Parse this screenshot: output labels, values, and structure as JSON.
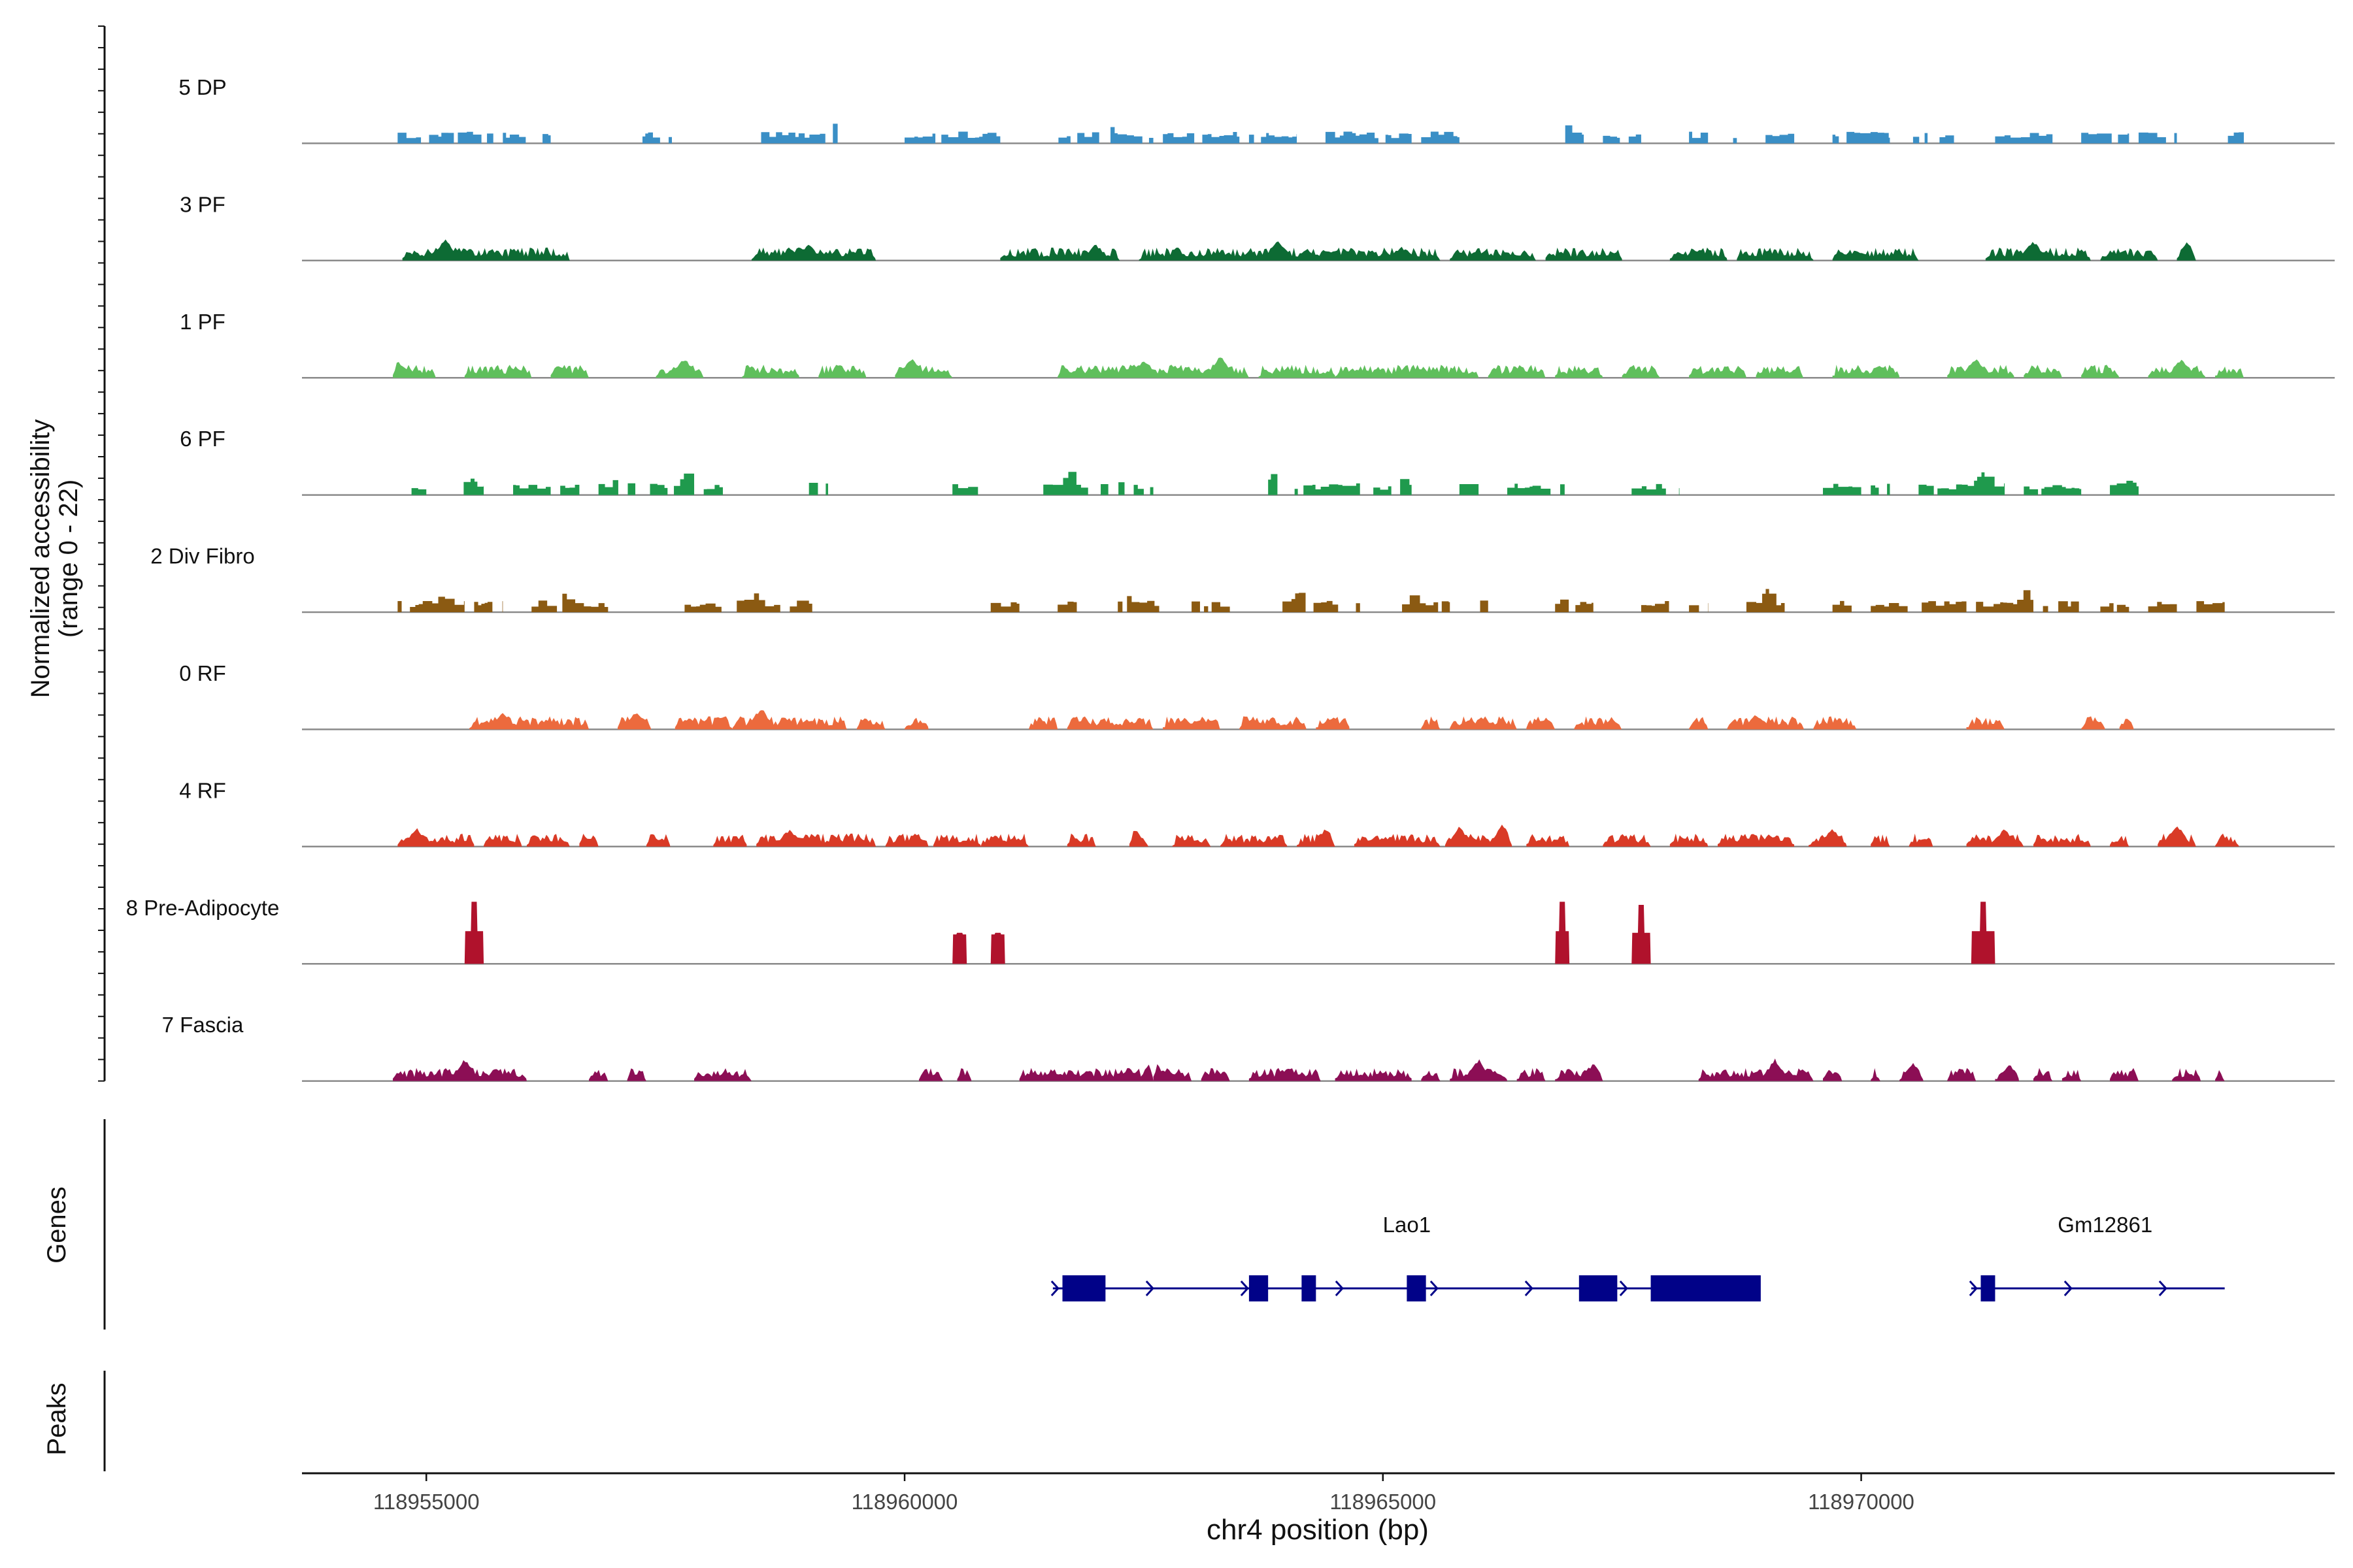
{
  "chart_data": {
    "type": "area",
    "title": "",
    "xlabel": "chr4 position (bp)",
    "ylabel_line1": "Normalized accessibility",
    "ylabel_line2": "(range 0 - 22)",
    "y_range": [
      0,
      22
    ],
    "x_range": [
      118953700,
      118974950
    ],
    "x_ticks": [
      118955000,
      118960000,
      118965000,
      118970000
    ],
    "x_tick_labels": [
      "118955000",
      "118960000",
      "118965000",
      "118970000"
    ],
    "grid": false,
    "tracks": [
      {
        "name": "5 DP",
        "color": "#3a8fc6",
        "style": "fragments",
        "regions": [
          [
            118954700,
            118955700
          ],
          [
            118955800,
            118956300
          ],
          [
            118957200,
            118957600
          ],
          [
            118958500,
            118959300
          ],
          [
            118960000,
            118961000
          ],
          [
            118961400,
            118962600
          ],
          [
            118962700,
            118963500
          ],
          [
            118963600,
            118964100
          ],
          [
            118964400,
            118965300
          ],
          [
            118965400,
            118965800
          ],
          [
            118966800,
            118967100
          ],
          [
            118967300,
            118967700
          ],
          [
            118968200,
            118968700
          ],
          [
            118969000,
            118969300
          ],
          [
            118969700,
            118970300
          ],
          [
            118970500,
            118971000
          ],
          [
            118971400,
            118972000
          ],
          [
            118972300,
            118972800
          ],
          [
            118972900,
            118973300
          ],
          [
            118973800,
            118974000
          ]
        ],
        "peaks": [
          [
            118955550,
            0.6
          ],
          [
            118959250,
            0.8
          ],
          [
            118962100,
            1.0
          ],
          [
            118966900,
            0.8
          ],
          [
            118973650,
            1.0
          ]
        ]
      },
      {
        "name": "3 PF",
        "color": "#0d6b34",
        "style": "dense",
        "regions": [
          [
            118954750,
            118956500
          ],
          [
            118958400,
            118959700
          ],
          [
            118961000,
            118962250
          ],
          [
            118962450,
            118965600
          ],
          [
            118965700,
            118966600
          ],
          [
            118966700,
            118967500
          ],
          [
            118968000,
            118968600
          ],
          [
            118968700,
            118969500
          ],
          [
            118969700,
            118970600
          ],
          [
            118971300,
            118972400
          ],
          [
            118972500,
            118973100
          ],
          [
            118973300,
            118973500
          ]
        ],
        "peaks": [
          [
            118955200,
            1.0
          ],
          [
            118959000,
            0.7
          ],
          [
            118962000,
            0.7
          ],
          [
            118963900,
            1.0
          ],
          [
            118965200,
            0.6
          ],
          [
            118971800,
            0.9
          ],
          [
            118973400,
            0.8
          ]
        ]
      },
      {
        "name": "1 PF",
        "color": "#5fbf5c",
        "style": "dense",
        "regions": [
          [
            118954650,
            118955100
          ],
          [
            118955400,
            118956100
          ],
          [
            118956300,
            118956700
          ],
          [
            118957400,
            118957900
          ],
          [
            118958300,
            118958900
          ],
          [
            118959100,
            118959600
          ],
          [
            118959900,
            118960500
          ],
          [
            118961600,
            118963600
          ],
          [
            118963700,
            118964500
          ],
          [
            118964500,
            118966000
          ],
          [
            118966100,
            118966700
          ],
          [
            118966800,
            118967300
          ],
          [
            118967500,
            118967900
          ],
          [
            118968200,
            118968800
          ],
          [
            118968900,
            118969400
          ],
          [
            118969700,
            118970400
          ],
          [
            118970900,
            118971600
          ],
          [
            118971700,
            118972100
          ],
          [
            118972300,
            118972700
          ],
          [
            118973000,
            118973600
          ],
          [
            118973700,
            118974000
          ]
        ],
        "peaks": [
          [
            118954700,
            0.8
          ],
          [
            118957700,
            0.9
          ],
          [
            118960080,
            0.9
          ],
          [
            118962500,
            0.8
          ],
          [
            118963300,
            1.0
          ],
          [
            118971200,
            0.9
          ],
          [
            118973350,
            0.9
          ]
        ]
      },
      {
        "name": "6 PF",
        "color": "#1f9a4d",
        "style": "fragments",
        "regions": [
          [
            118954800,
            118955000
          ],
          [
            118955300,
            118955600
          ],
          [
            118955800,
            118956300
          ],
          [
            118956400,
            118956600
          ],
          [
            118956800,
            118957800
          ],
          [
            118957900,
            118958100
          ],
          [
            118959000,
            118959200
          ],
          [
            118960500,
            118960900
          ],
          [
            118961450,
            118961950
          ],
          [
            118962050,
            118962600
          ],
          [
            118963800,
            118964800
          ],
          [
            118964900,
            118965300
          ],
          [
            118965800,
            118966000
          ],
          [
            118966300,
            118966900
          ],
          [
            118967600,
            118968100
          ],
          [
            118969600,
            118970000
          ],
          [
            118970100,
            118970300
          ],
          [
            118970600,
            118971500
          ],
          [
            118971700,
            118972300
          ],
          [
            118972600,
            118972900
          ]
        ],
        "peaks": [
          [
            118955450,
            0.8
          ],
          [
            118957000,
            0.9
          ],
          [
            118957700,
            1.0
          ],
          [
            118959050,
            0.8
          ],
          [
            118961700,
            1.0
          ],
          [
            118962300,
            1.0
          ],
          [
            118963850,
            1.0
          ],
          [
            118965200,
            0.8
          ],
          [
            118971250,
            1.0
          ],
          [
            118972800,
            0.7
          ]
        ]
      },
      {
        "name": "2 Div Fibro",
        "color": "#8b5a12",
        "style": "fragments",
        "regions": [
          [
            118954700,
            118955400
          ],
          [
            118955500,
            118955800
          ],
          [
            118956100,
            118956900
          ],
          [
            118957700,
            118958700
          ],
          [
            118958800,
            118959100
          ],
          [
            118960900,
            118961200
          ],
          [
            118961600,
            118961800
          ],
          [
            118962200,
            118962700
          ],
          [
            118963000,
            118963400
          ],
          [
            118963950,
            118964800
          ],
          [
            118965200,
            118965700
          ],
          [
            118965800,
            118966100
          ],
          [
            118966800,
            118967200
          ],
          [
            118967700,
            118968000
          ],
          [
            118968200,
            118968400
          ],
          [
            118968800,
            118969200
          ],
          [
            118969700,
            118969900
          ],
          [
            118970100,
            118971100
          ],
          [
            118971200,
            118971800
          ],
          [
            118971900,
            118972300
          ],
          [
            118972500,
            118972800
          ],
          [
            118973000,
            118973300
          ],
          [
            118973400,
            118973800
          ]
        ],
        "peaks": [
          [
            118955150,
            0.8
          ],
          [
            118956400,
            0.9
          ],
          [
            118958400,
            0.9
          ],
          [
            118962300,
            0.8
          ],
          [
            118964100,
            0.9
          ],
          [
            118965300,
            0.8
          ],
          [
            118966900,
            0.8
          ],
          [
            118969000,
            1.0
          ],
          [
            118971700,
            1.0
          ]
        ]
      },
      {
        "name": "0 RF",
        "color": "#ec6a3d",
        "style": "dense",
        "regions": [
          [
            118955450,
            118956700
          ],
          [
            118957000,
            118957350
          ],
          [
            118957600,
            118958200
          ],
          [
            118958200,
            118959400
          ],
          [
            118959500,
            118959800
          ],
          [
            118960000,
            118960250
          ],
          [
            118961300,
            118961600
          ],
          [
            118961700,
            118962600
          ],
          [
            118962700,
            118963300
          ],
          [
            118963500,
            118964200
          ],
          [
            118964300,
            118964650
          ],
          [
            118965400,
            118965600
          ],
          [
            118965700,
            118966400
          ],
          [
            118966500,
            118966800
          ],
          [
            118967000,
            118967500
          ],
          [
            118968200,
            118968400
          ],
          [
            118968600,
            118969400
          ],
          [
            118969500,
            118969950
          ],
          [
            118971100,
            118971500
          ],
          [
            118972300,
            118972550
          ],
          [
            118972700,
            118972850
          ]
        ],
        "peaks": [
          [
            118955800,
            0.8
          ],
          [
            118957200,
            0.8
          ],
          [
            118958500,
            1.0
          ],
          [
            118961600,
            0.8
          ],
          [
            118968900,
            0.7
          ]
        ]
      },
      {
        "name": "4 RF",
        "color": "#d93a26",
        "style": "dense",
        "regions": [
          [
            118954700,
            118955500
          ],
          [
            118955600,
            118956000
          ],
          [
            118956050,
            118956500
          ],
          [
            118956600,
            118956800
          ],
          [
            118957300,
            118957550
          ],
          [
            118958000,
            118958350
          ],
          [
            118958450,
            118959700
          ],
          [
            118959800,
            118960250
          ],
          [
            118960300,
            118960800
          ],
          [
            118960800,
            118961300
          ],
          [
            118961700,
            118962000
          ],
          [
            118962350,
            118962550
          ],
          [
            118962800,
            118963200
          ],
          [
            118963300,
            118964000
          ],
          [
            118964100,
            118964500
          ],
          [
            118964700,
            118965600
          ],
          [
            118965650,
            118966350
          ],
          [
            118966500,
            118966950
          ],
          [
            118967300,
            118967800
          ],
          [
            118968000,
            118968400
          ],
          [
            118968500,
            118969300
          ],
          [
            118969450,
            118969850
          ],
          [
            118970100,
            118970300
          ],
          [
            118970500,
            118970750
          ],
          [
            118971100,
            118971700
          ],
          [
            118971800,
            118972400
          ],
          [
            118972600,
            118972800
          ],
          [
            118973100,
            118973500
          ],
          [
            118973700,
            118973950
          ]
        ],
        "peaks": [
          [
            118954900,
            0.8
          ],
          [
            118956600,
            0.7
          ],
          [
            118958800,
            0.8
          ],
          [
            118962400,
            0.8
          ],
          [
            118964400,
            0.8
          ],
          [
            118965800,
            0.9
          ],
          [
            118966250,
            1.0
          ],
          [
            118969700,
            0.8
          ],
          [
            118971500,
            0.8
          ],
          [
            118973300,
            1.0
          ]
        ]
      },
      {
        "name": "8 Pre-Adipocyte",
        "color": "#b0122c",
        "style": "peaks",
        "regions": [
          [
            118955400,
            118955600
          ],
          [
            118960500,
            118960650
          ],
          [
            118960900,
            118961050
          ],
          [
            118966800,
            118966950
          ],
          [
            118967600,
            118967800
          ],
          [
            118971150,
            118971400
          ]
        ],
        "peaks": [
          [
            118955500,
            1.0
          ],
          [
            118960570,
            0.5
          ],
          [
            118960970,
            0.5
          ],
          [
            118966880,
            1.0
          ],
          [
            118967700,
            0.95
          ],
          [
            118971280,
            1.0
          ]
        ]
      },
      {
        "name": "7 Fascia",
        "color": "#8c0e55",
        "style": "dense",
        "regions": [
          [
            118954650,
            118956050
          ],
          [
            118956700,
            118956900
          ],
          [
            118957100,
            118957300
          ],
          [
            118957800,
            118958400
          ],
          [
            118960150,
            118960400
          ],
          [
            118960550,
            118960700
          ],
          [
            118961200,
            118962600
          ],
          [
            118962600,
            118963000
          ],
          [
            118963100,
            118963400
          ],
          [
            118963600,
            118964350
          ],
          [
            118964500,
            118965300
          ],
          [
            118965400,
            118965600
          ],
          [
            118965700,
            118966300
          ],
          [
            118966400,
            118966700
          ],
          [
            118966800,
            118967300
          ],
          [
            118968300,
            118969500
          ],
          [
            118969600,
            118969800
          ],
          [
            118970100,
            118970200
          ],
          [
            118970400,
            118970650
          ],
          [
            118970900,
            118971200
          ],
          [
            118971400,
            118971650
          ],
          [
            118971800,
            118972000
          ],
          [
            118972100,
            118972300
          ],
          [
            118972600,
            118972900
          ],
          [
            118973250,
            118973550
          ],
          [
            118973700,
            118973800
          ]
        ],
        "peaks": [
          [
            118955400,
            1.0
          ],
          [
            118962600,
            1.0
          ],
          [
            118966000,
            1.0
          ],
          [
            118967200,
            0.8
          ],
          [
            118969100,
            1.0
          ],
          [
            118970550,
            0.8
          ],
          [
            118971550,
            0.7
          ]
        ]
      }
    ],
    "genes_label": "Genes",
    "genes": [
      {
        "name": "Lao1",
        "start": 118961550,
        "end": 118968900,
        "strand": "+",
        "exons": [
          [
            118961650,
            118962100
          ],
          [
            118963600,
            118963800
          ],
          [
            118964150,
            118964300
          ],
          [
            118965250,
            118965450
          ],
          [
            118967050,
            118967450
          ],
          [
            118967800,
            118968950
          ]
        ]
      },
      {
        "name": "Gm12861",
        "start": 118971150,
        "end": 118973800,
        "strand": "+",
        "exons": [
          [
            118971250,
            118971400
          ]
        ]
      }
    ],
    "peaks_label": "Peaks",
    "peaks_track": []
  }
}
